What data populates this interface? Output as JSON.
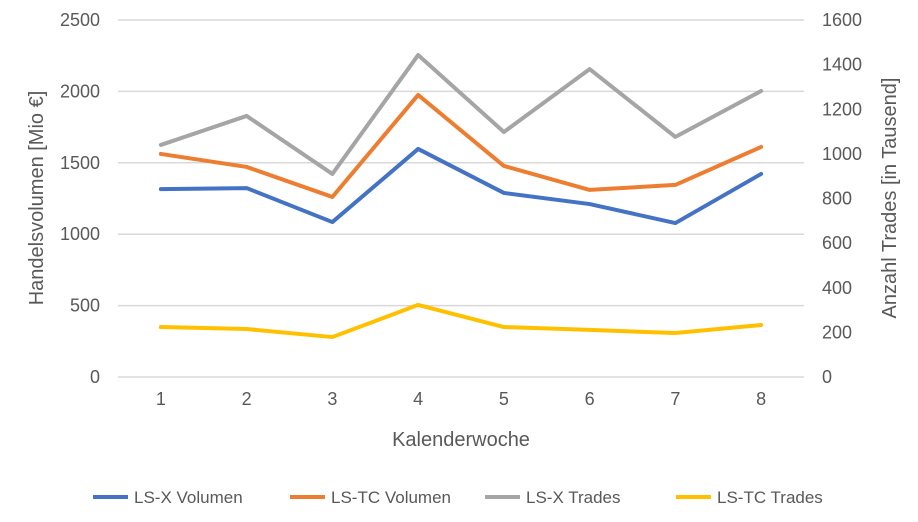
{
  "chart_data": {
    "type": "line",
    "title": "",
    "xlabel": "Kalenderwoche",
    "ylabel": "Handelsvolumen [Mio €]",
    "y2label": "Anzahl Trades [in Tausend]",
    "categories": [
      "1",
      "2",
      "3",
      "4",
      "5",
      "6",
      "7",
      "8"
    ],
    "ylim": [
      0,
      2500
    ],
    "y2lim": [
      0,
      1600
    ],
    "yticks": [
      "0",
      "500",
      "1000",
      "1500",
      "2000",
      "2500"
    ],
    "y2ticks": [
      "0",
      "200",
      "400",
      "600",
      "800",
      "1000",
      "1200",
      "1400",
      "1600"
    ],
    "grid": true,
    "legend": "bottom",
    "series": [
      {
        "name": "LS-X Volumen",
        "axis": "left",
        "color": "#4472C4",
        "values": [
          1316,
          1323,
          1085,
          1597,
          1289,
          1211,
          1078,
          1422
        ]
      },
      {
        "name": "LS-TC Volumen",
        "axis": "left",
        "color": "#ED7D31",
        "values": [
          1562,
          1471,
          1261,
          1975,
          1478,
          1310,
          1345,
          1611
        ]
      },
      {
        "name": "LS-X Trades",
        "axis": "right",
        "color": "#A5A5A5",
        "values": [
          1040,
          1170,
          910,
          1443,
          1098,
          1380,
          1076,
          1282
        ]
      },
      {
        "name": "LS-TC Trades",
        "axis": "right",
        "color": "#FFC000",
        "values": [
          224,
          215,
          179,
          323,
          224,
          211,
          197,
          233
        ]
      }
    ]
  }
}
